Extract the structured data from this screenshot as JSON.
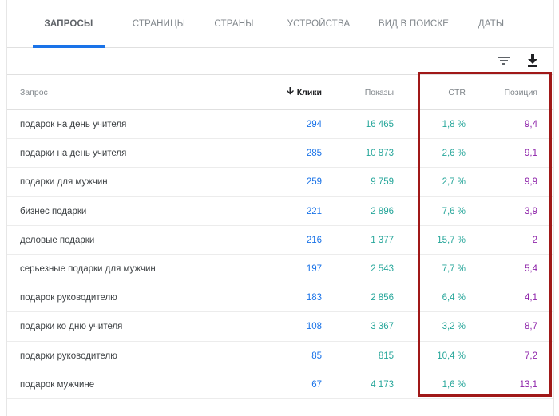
{
  "tabs": [
    {
      "label": "ЗАПРОСЫ"
    },
    {
      "label": "СТРАНИЦЫ"
    },
    {
      "label": "СТРАНЫ"
    },
    {
      "label": "УСТРОЙСТВА"
    },
    {
      "label": "ВИД В ПОИСКЕ"
    },
    {
      "label": "ДАТЫ"
    }
  ],
  "active_tab": "ЗАПРОСЫ",
  "toolbar": {
    "filter_icon": "filter-icon",
    "download_icon": "download-icon"
  },
  "table": {
    "headers": {
      "query": "Запрос",
      "clicks": "Клики",
      "impressions": "Показы",
      "ctr": "CTR",
      "position": "Позиция"
    },
    "sort_icon": "arrow-down-icon",
    "rows": [
      {
        "query": "подарок на день учителя",
        "clicks": "294",
        "impressions": "16 465",
        "ctr": "1,8 %",
        "position": "9,4"
      },
      {
        "query": "подарки на день учителя",
        "clicks": "285",
        "impressions": "10 873",
        "ctr": "2,6 %",
        "position": "9,1"
      },
      {
        "query": "подарки для мужчин",
        "clicks": "259",
        "impressions": "9 759",
        "ctr": "2,7 %",
        "position": "9,9"
      },
      {
        "query": "бизнес подарки",
        "clicks": "221",
        "impressions": "2 896",
        "ctr": "7,6 %",
        "position": "3,9"
      },
      {
        "query": "деловые подарки",
        "clicks": "216",
        "impressions": "1 377",
        "ctr": "15,7 %",
        "position": "2"
      },
      {
        "query": "серьезные подарки для мужчин",
        "clicks": "197",
        "impressions": "2 543",
        "ctr": "7,7 %",
        "position": "5,4"
      },
      {
        "query": "подарок руководителю",
        "clicks": "183",
        "impressions": "2 856",
        "ctr": "6,4 %",
        "position": "4,1"
      },
      {
        "query": "подарки ко дню учителя",
        "clicks": "108",
        "impressions": "3 367",
        "ctr": "3,2 %",
        "position": "8,7"
      },
      {
        "query": "подарки руководителю",
        "clicks": "85",
        "impressions": "815",
        "ctr": "10,4 %",
        "position": "7,2"
      },
      {
        "query": "подарок мужчине",
        "clicks": "67",
        "impressions": "4 173",
        "ctr": "1,6 %",
        "position": "13,1"
      }
    ]
  },
  "colors": {
    "clicks": "#1a73e8",
    "impressions": "#26a69a",
    "ctr": "#26a69a",
    "position": "#8e24aa",
    "highlight": "#a01818",
    "active_tab_underline": "#1a73e8"
  }
}
